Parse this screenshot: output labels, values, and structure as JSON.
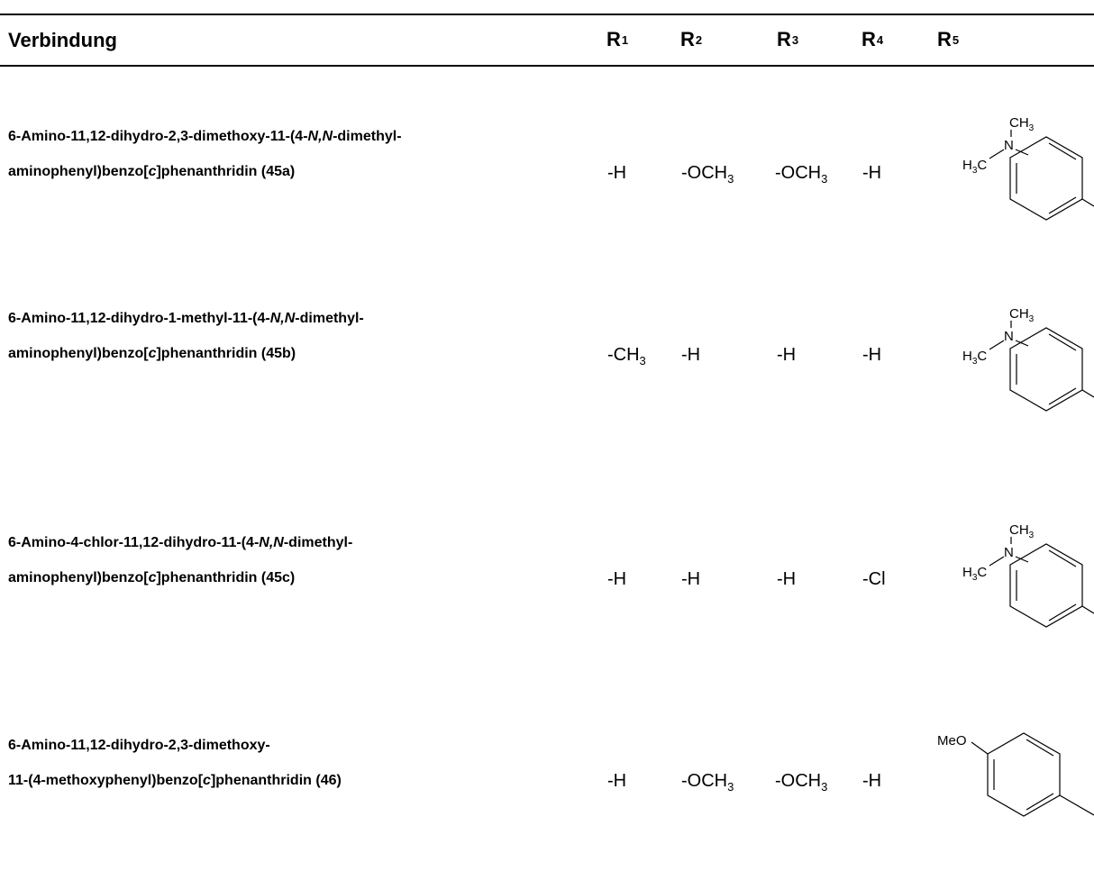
{
  "header": {
    "compound": "Verbindung",
    "r1": "R",
    "r1_sup": "1",
    "r2": "R",
    "r2_sup": "2",
    "r3": "R",
    "r3_sup": "3",
    "r4": "R",
    "r4_sup": "4",
    "r5": "R",
    "r5_sup": "5"
  },
  "rows": [
    {
      "name_1a": "6-Amino-11,12-dihydro-2,3-dimethoxy-11-(4-",
      "name_1b": "N,N",
      "name_1c": "-dimethyl-",
      "name_2a": "aminophenyl)benzo[",
      "name_2b": "c",
      "name_2c": "]phenanthridin (45a)",
      "r1": "-H",
      "r2": "-OCH",
      "r2_sub": "3",
      "r3": "-OCH",
      "r3_sub": "3",
      "r4": "-H",
      "r5": "4-N,N-dimethylaminophenyl"
    },
    {
      "name_1a": "6-Amino-11,12-dihydro-1-methyl-11-(4-",
      "name_1b": "N,N",
      "name_1c": "-dimethyl-",
      "name_2a": "aminophenyl)benzo[",
      "name_2b": "c",
      "name_2c": "]phenanthridin (45b)",
      "r1": "-CH",
      "r1_sub": "3",
      "r2": "-H",
      "r3": "-H",
      "r4": "-H",
      "r5": "4-N,N-dimethylaminophenyl"
    },
    {
      "name_1a": "6-Amino-4-chlor-11,12-dihydro-11-(4-",
      "name_1b": "N,N",
      "name_1c": "-dimethyl-",
      "name_2a": "aminophenyl)benzo[",
      "name_2b": "c",
      "name_2c": "]phenanthridin (45c)",
      "r1": "-H",
      "r2": "-H",
      "r3": "-H",
      "r4": "-Cl",
      "r5": "4-N,N-dimethylaminophenyl"
    },
    {
      "name_1a": "6-Amino-11,12-dihydro-2,3-dimethoxy-",
      "name_2a": "11-(4-methoxyphenyl)benzo[",
      "name_2b": "c",
      "name_2c": "]phenanthridin (46)",
      "r1": "-H",
      "r2": "-OCH",
      "r2_sub": "3",
      "r3": "-OCH",
      "r3_sub": "3",
      "r4": "-H",
      "r5": "4-methoxyphenyl"
    }
  ],
  "structures": {
    "ch3_label": "CH",
    "ch3_sub": "3",
    "n_label": "N",
    "h3c_h": "H",
    "h3c_sub": "3",
    "h3c_c": "C",
    "meo_label": "MeO"
  }
}
